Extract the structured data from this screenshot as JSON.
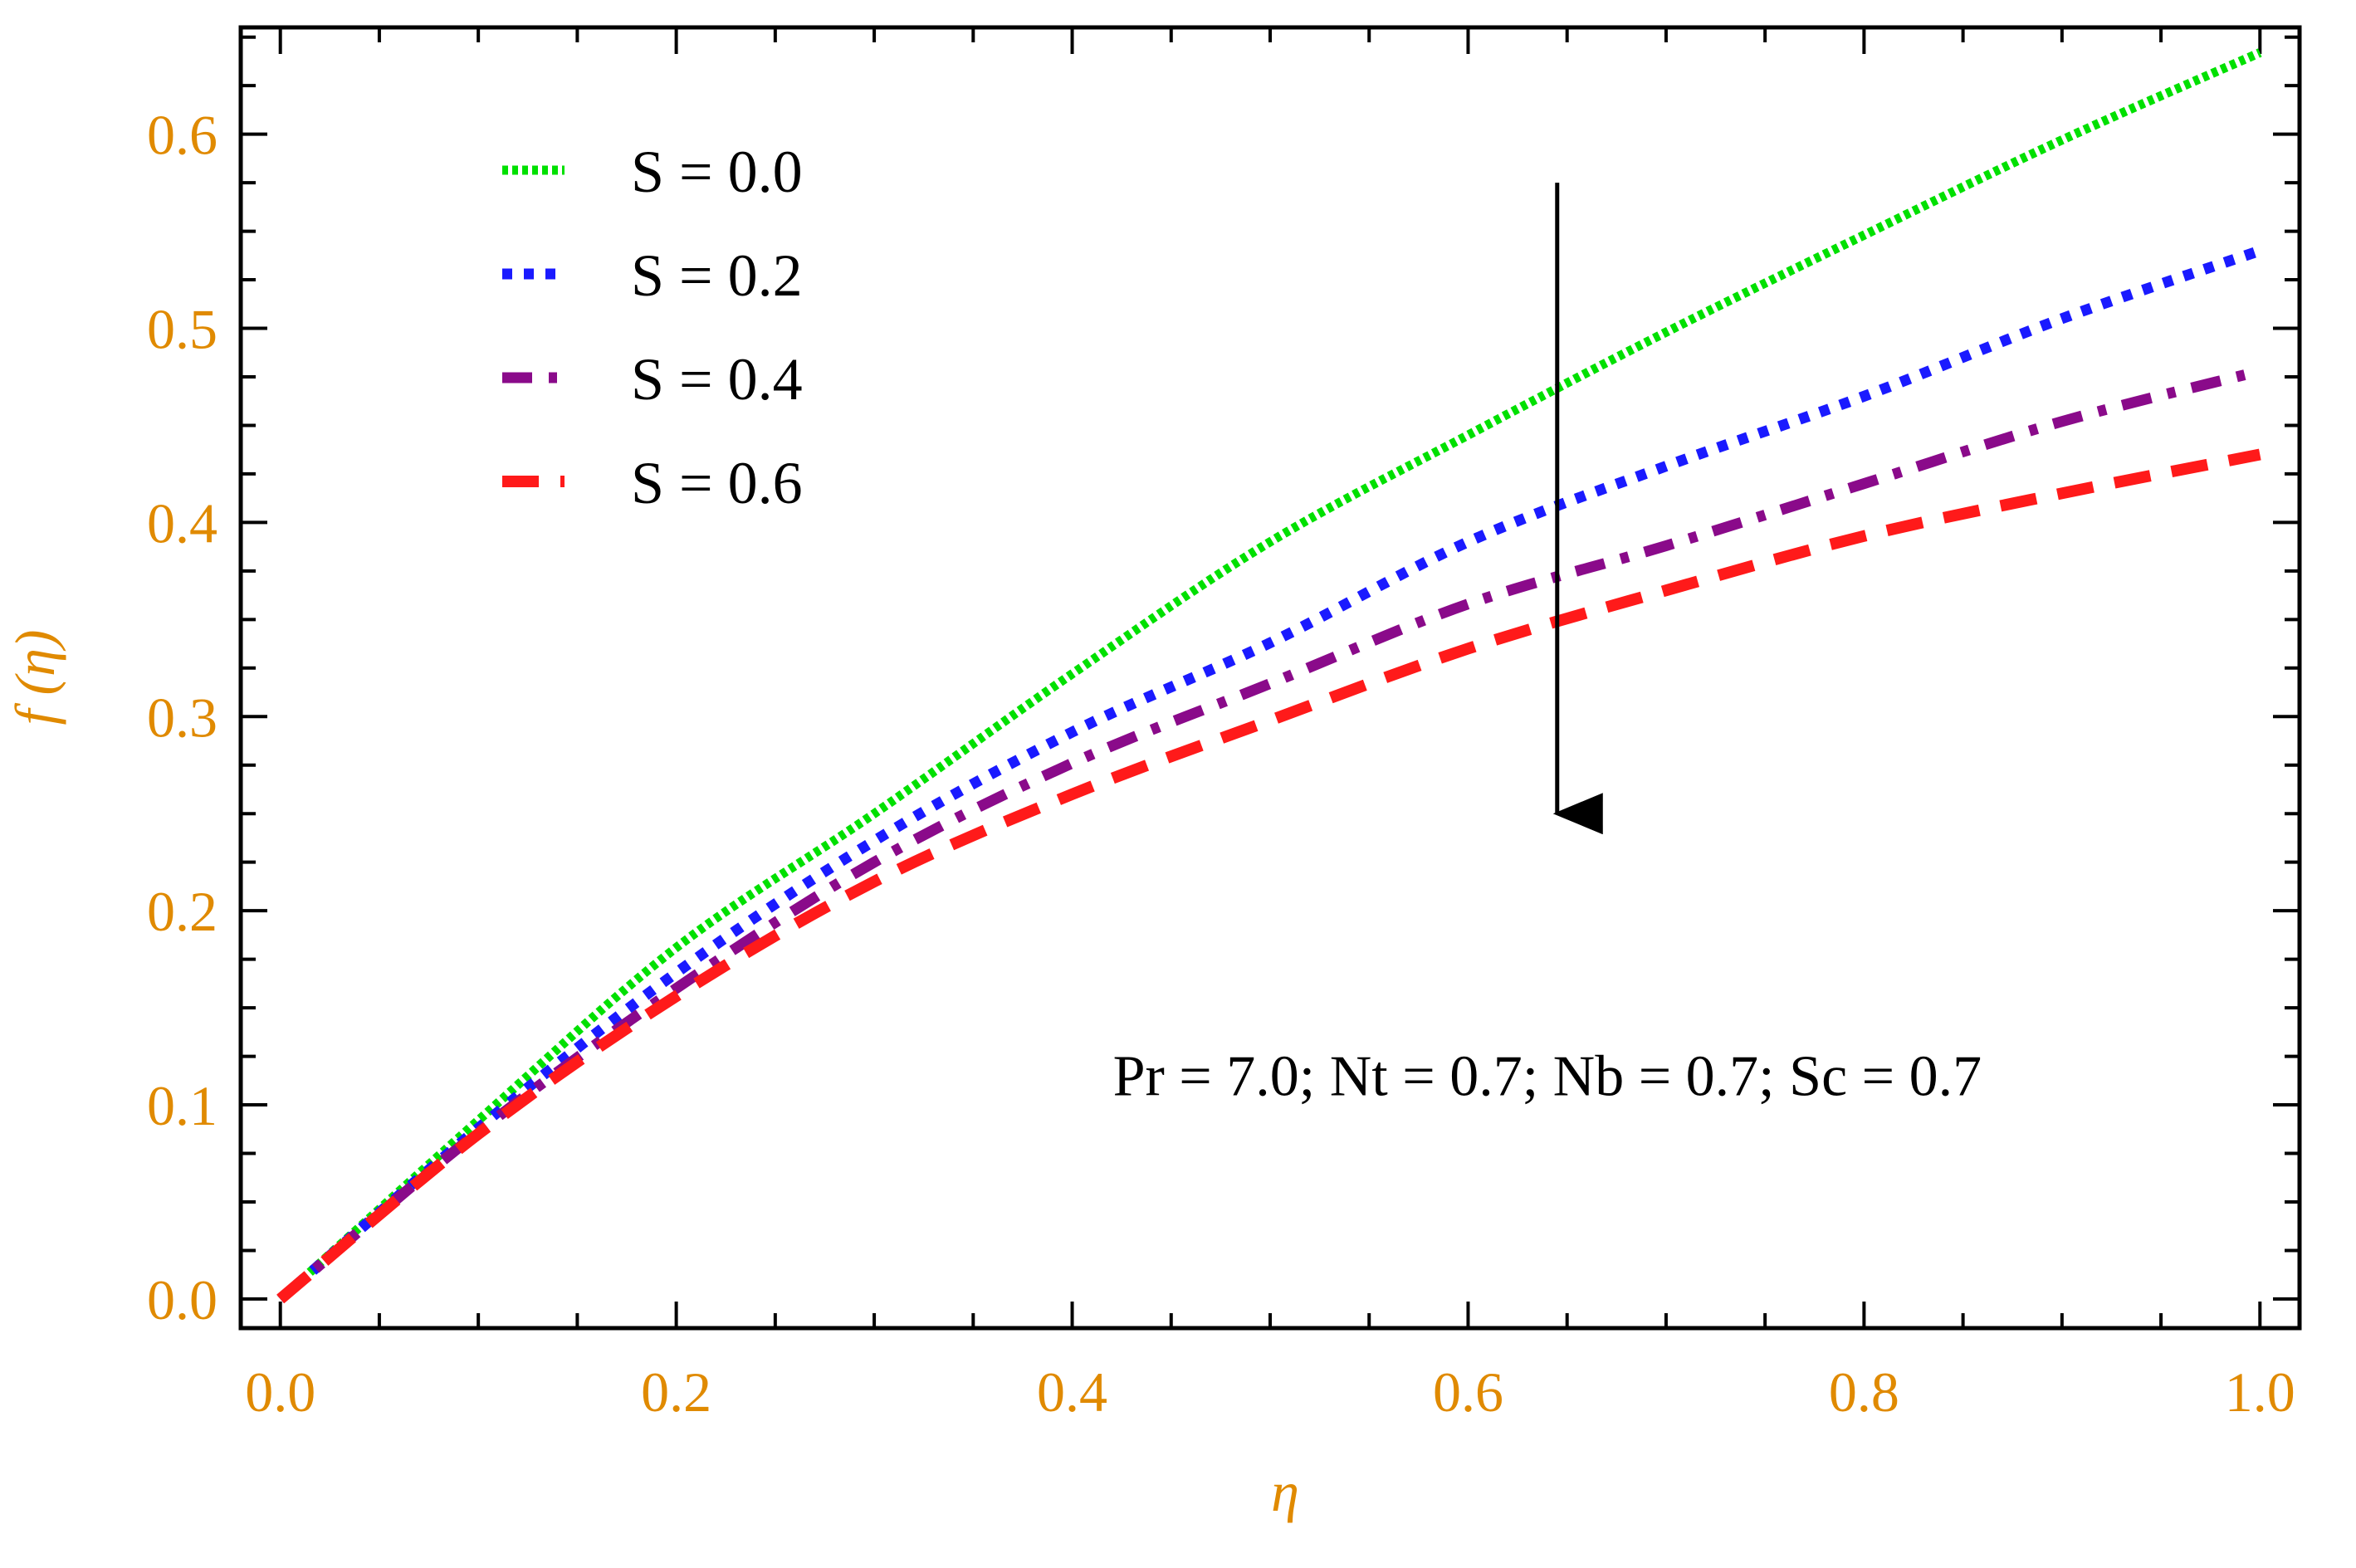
{
  "chart_data": {
    "type": "line",
    "title": "",
    "xlabel": "η",
    "ylabel": "f (η)",
    "xlim": [
      -0.02,
      1.02
    ],
    "ylim": [
      -0.015,
      0.655
    ],
    "x_ticks": [
      "0.0",
      "0.2",
      "0.4",
      "0.6",
      "0.8",
      "1.0"
    ],
    "y_ticks": [
      "0.0",
      "0.1",
      "0.2",
      "0.3",
      "0.4",
      "0.5",
      "0.6"
    ],
    "grid": false,
    "legend_position": "top-left",
    "x": [
      0.0,
      0.1,
      0.2,
      0.3,
      0.4,
      0.5,
      0.6,
      0.7,
      0.8,
      0.9,
      1.0
    ],
    "series": [
      {
        "name": "S = 0.0",
        "color": "#00e000",
        "dash": "dotted",
        "values": [
          0.0,
          0.092,
          0.181,
          0.25,
          0.322,
          0.39,
          0.445,
          0.498,
          0.548,
          0.597,
          0.642
        ]
      },
      {
        "name": "S = 0.2",
        "color": "#1a1aff",
        "dash": "dotted-coarse",
        "values": [
          0.0,
          0.088,
          0.168,
          0.236,
          0.292,
          0.338,
          0.39,
          0.429,
          0.465,
          0.505,
          0.54
        ]
      },
      {
        "name": "S = 0.4",
        "color": "#8a0a8a",
        "dash": "dash-dot",
        "values": [
          0.0,
          0.086,
          0.16,
          0.225,
          0.276,
          0.317,
          0.358,
          0.388,
          0.42,
          0.452,
          0.478
        ]
      },
      {
        "name": "S = 0.6",
        "color": "#ff1a1a",
        "dash": "dashed",
        "values": [
          0.0,
          0.085,
          0.156,
          0.215,
          0.26,
          0.298,
          0.335,
          0.365,
          0.393,
          0.415,
          0.435
        ]
      }
    ],
    "annotations": [
      {
        "text": "Pr = 7.0;  Nt = 0.7; Nb = 0.7; Sc = 0.7",
        "x": 0.64,
        "y": 0.105
      }
    ],
    "arrow": {
      "x": 0.645,
      "y_from": 0.575,
      "y_to": 0.25
    }
  }
}
